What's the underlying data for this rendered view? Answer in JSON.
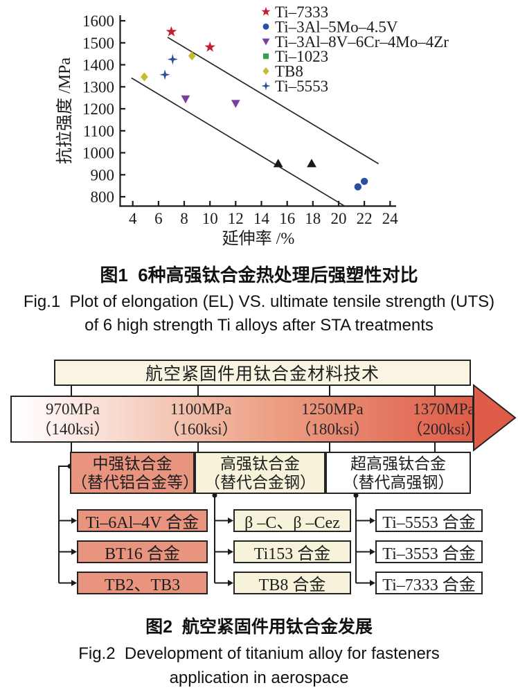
{
  "fig1": {
    "caption_zh": "图1  6种高强钛合金热处理后强塑性对比",
    "caption_en_line1": "Fig.1  Plot of elongation (EL) VS. ultimate tensile strength (UTS)",
    "caption_en_line2": "of 6 high strength Ti alloys after STA treatments"
  },
  "chart_data": {
    "type": "scatter",
    "xlabel": "延伸率 /%",
    "ylabel": "抗拉强度 /MPa",
    "xlim": [
      3,
      24.5
    ],
    "ylim": [
      760,
      1620
    ],
    "xticks": [
      4,
      6,
      8,
      10,
      12,
      14,
      16,
      18,
      20,
      22,
      24
    ],
    "yticks": [
      800,
      900,
      1000,
      1100,
      1200,
      1300,
      1400,
      1500,
      1600
    ],
    "grid": false,
    "legend_position": "top-right",
    "series": [
      {
        "name": "Ti–7333",
        "marker": "star",
        "color": "#c21d30",
        "points": [
          [
            7,
            1550
          ],
          [
            10,
            1480
          ]
        ]
      },
      {
        "name": "Ti–3Al–5Mo–4.5V",
        "marker": "circle",
        "color": "#2a4fa2",
        "points": [
          [
            21.5,
            845
          ],
          [
            22,
            870
          ]
        ]
      },
      {
        "name": "Ti–3Al–8V–6Cr–4Mo–4Zr",
        "marker": "triangle-down",
        "color": "#7b3fa0",
        "points": [
          [
            8.1,
            1245
          ],
          [
            12,
            1225
          ]
        ]
      },
      {
        "name": "Ti–1023",
        "marker": "square",
        "color": "#2aa44e",
        "points": []
      },
      {
        "name": "TB8",
        "marker": "diamond",
        "color": "#c6bd2d",
        "points": [
          [
            4.9,
            1345
          ],
          [
            8.6,
            1440
          ]
        ]
      },
      {
        "name": "Ti–5553",
        "marker": "star4",
        "color": "#2b4f96",
        "points": [
          [
            6.5,
            1355
          ],
          [
            7.1,
            1425
          ]
        ]
      }
    ],
    "extra_points": {
      "marker": "triangle-up",
      "color": "#1a1a1a",
      "points": [
        [
          15.3,
          950
        ],
        [
          17.9,
          950
        ]
      ]
    },
    "trend_lines": [
      {
        "x1": 6.7,
        "y1": 1525,
        "x2": 23.1,
        "y2": 950
      },
      {
        "x1": 3.9,
        "y1": 1340,
        "x2": 20.4,
        "y2": 760
      }
    ]
  },
  "fig2": {
    "banner": "航空紧固件用钛合金材料技术",
    "arrow_labels": [
      {
        "mpa": "970MPa",
        "ksi": "（140ksi）"
      },
      {
        "mpa": "1100MPa",
        "ksi": "（160ksi）"
      },
      {
        "mpa": "1250MPa",
        "ksi": "（180ksi）"
      },
      {
        "mpa": "1370MPa",
        "ksi": "（200ksi）"
      }
    ],
    "categories": [
      {
        "line1": "中强钛合金",
        "line2": "（替代铝合金等）"
      },
      {
        "line1": "高强钛合金",
        "line2": "（替代合金钢）"
      },
      {
        "line1": "超高强钛合金",
        "line2": "（替代高强钢）"
      }
    ],
    "columns": [
      {
        "items": [
          "Ti–6Al–4V 合金",
          "BT16 合金",
          "TB2、TB3"
        ]
      },
      {
        "items": [
          "β –C、β –Cez",
          "Ti153 合金",
          "TB8 合金"
        ]
      },
      {
        "items": [
          "Ti–5553 合金",
          "Ti–3553 合金",
          "Ti–7333 合金"
        ]
      }
    ],
    "caption_zh": "图2  航空紧固件用钛合金发展",
    "caption_en_line1": "Fig.2  Development of titanium alloy for fasteners",
    "caption_en_line2": "application in aerospace",
    "colors": {
      "salmon": "#e8947e",
      "cream": "#f7f3da",
      "white": "#ffffff",
      "banner": "#faf5e2",
      "arrow_start": "#fffefe",
      "arrow_mid": "#eda287",
      "arrow_end": "#de5c48",
      "line": "#1a1a1a"
    }
  }
}
